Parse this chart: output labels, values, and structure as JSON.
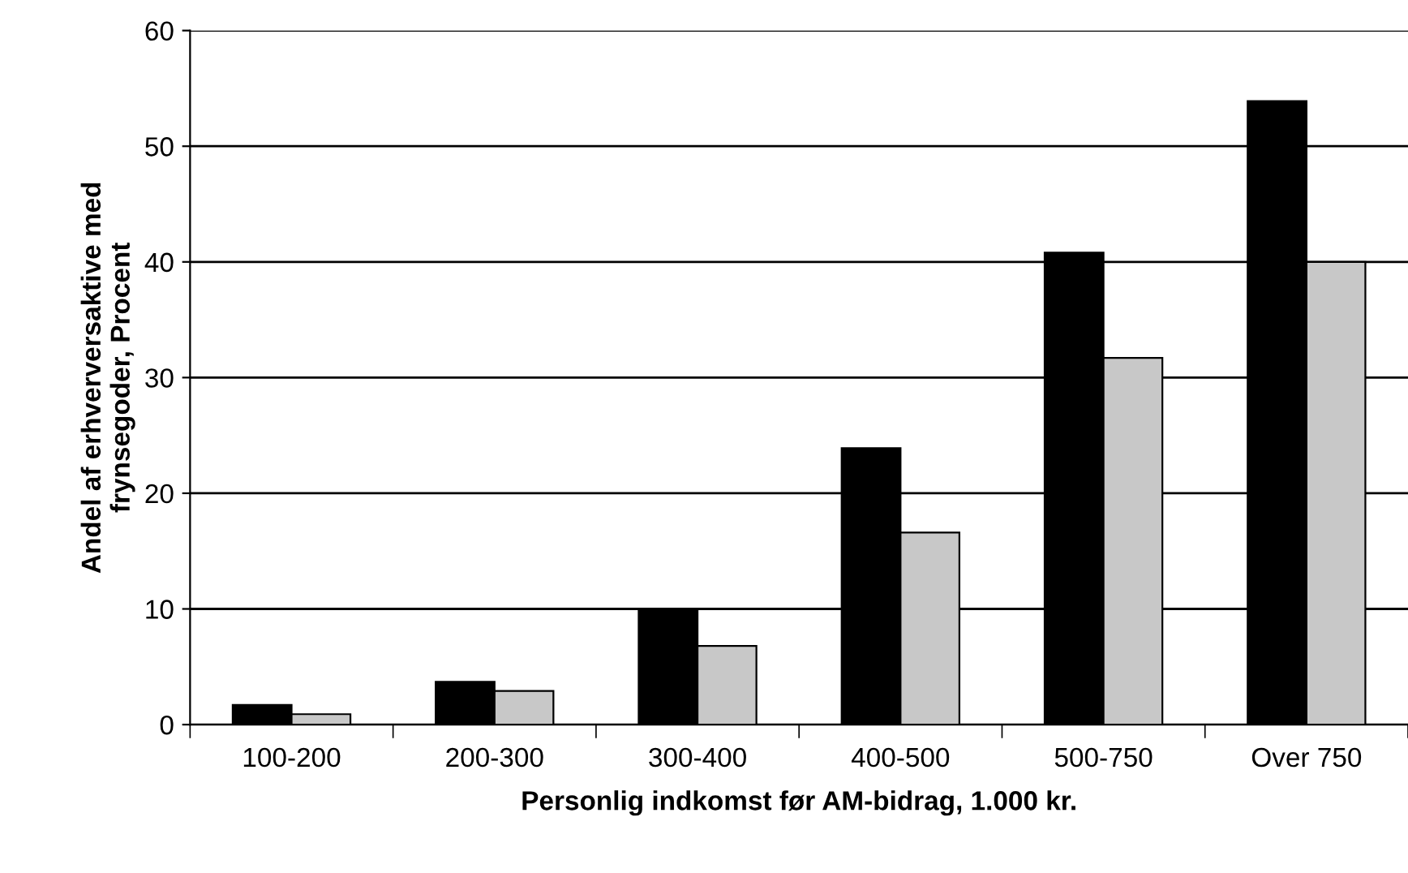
{
  "chart_data": {
    "type": "bar",
    "xlabel": "Personlig indkomst før AM-bidrag, 1.000 kr.",
    "ylabel": "Andel af erhverversaktive med\nfrynsegoder, Procent",
    "categories": [
      "100-200",
      "200-300",
      "300-400",
      "400-500",
      "500-750",
      "Over 750"
    ],
    "series": [
      {
        "color": "#000000",
        "values": [
          1.7,
          3.7,
          10,
          23.9,
          40.8,
          53.9
        ]
      },
      {
        "color": "#c8c8c8",
        "values": [
          0.9,
          2.9,
          6.8,
          16.6,
          31.7,
          40
        ]
      }
    ],
    "ylim": [
      0,
      60
    ],
    "yticks": [
      0,
      10,
      20,
      30,
      40,
      50,
      60
    ],
    "grid": "y",
    "legend": false
  }
}
